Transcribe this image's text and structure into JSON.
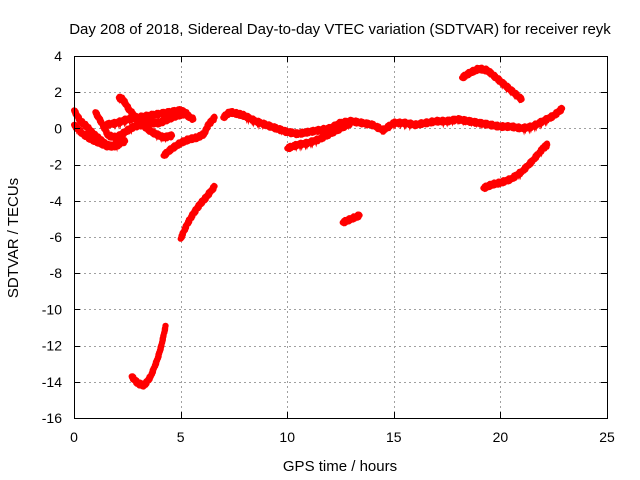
{
  "chart_data": {
    "type": "line",
    "title": "Day 208 of 2018, Sidereal Day-to-day VTEC variation (SDTVAR) for receiver reyk",
    "xlabel": "GPS time / hours",
    "ylabel": "SDTVAR / TECUs",
    "xlim": [
      0,
      25
    ],
    "ylim": [
      -16,
      4
    ],
    "xticks": [
      0,
      5,
      10,
      15,
      20,
      25
    ],
    "yticks": [
      -16,
      -14,
      -12,
      -10,
      -8,
      -6,
      -4,
      -2,
      0,
      2,
      4
    ],
    "xtick_labels": [
      "0",
      "5",
      "10",
      "15",
      "20",
      "25"
    ],
    "ytick_labels": [
      "-16",
      "-14",
      "-12",
      "-10",
      "-8",
      "-6",
      "-4",
      "-2",
      "0",
      "2",
      "4"
    ],
    "grid": true,
    "series_color": "#ff0000",
    "series": [
      {
        "name": "s1",
        "x": [
          0,
          0.3,
          0.6,
          0.9,
          1.2,
          1.5,
          1.8,
          2.1
        ],
        "y": [
          1.0,
          0.4,
          0.1,
          -0.3,
          -0.6,
          -0.9,
          -1.0,
          -0.9
        ]
      },
      {
        "name": "s2",
        "x": [
          0,
          0.4,
          0.8,
          1.2,
          1.6,
          2.0,
          2.4
        ],
        "y": [
          0.2,
          -0.3,
          -0.6,
          -0.8,
          -1.0,
          -0.9,
          -0.7
        ]
      },
      {
        "name": "s3",
        "x": [
          1.0,
          1.3,
          1.6,
          2.0,
          2.4,
          2.8,
          3.2,
          3.6,
          4.0,
          4.4,
          4.8,
          5.2,
          5.6
        ],
        "y": [
          0.9,
          0.3,
          -0.4,
          -0.5,
          -0.2,
          0.1,
          0.2,
          0.3,
          0.3,
          0.5,
          0.7,
          0.8,
          0.5
        ]
      },
      {
        "name": "s4",
        "x": [
          1.5,
          2.0,
          2.5,
          3.0,
          3.5,
          4.0,
          4.5,
          5.0,
          5.3
        ],
        "y": [
          0.2,
          0.3,
          0.5,
          0.6,
          0.7,
          0.8,
          0.9,
          1.0,
          0.8
        ]
      },
      {
        "name": "s5",
        "x": [
          2.1,
          2.3,
          2.6,
          3.0,
          3.4,
          3.8,
          4.2,
          4.6
        ],
        "y": [
          1.7,
          1.6,
          1.0,
          0.5,
          0.0,
          -0.3,
          -0.5,
          -0.4
        ]
      },
      {
        "name": "s6",
        "x": [
          4.2,
          4.6,
          5.0,
          5.4,
          5.8,
          6.1,
          6.3,
          6.6
        ],
        "y": [
          -1.5,
          -1.1,
          -0.8,
          -0.6,
          -0.5,
          -0.3,
          0.2,
          0.6
        ]
      },
      {
        "name": "s7",
        "x": [
          2.7,
          3.0,
          3.3,
          3.6,
          3.9,
          4.1,
          4.3
        ],
        "y": [
          -13.7,
          -14.1,
          -14.2,
          -13.7,
          -12.8,
          -12.0,
          -10.9
        ]
      },
      {
        "name": "s8",
        "x": [
          5.0,
          5.3,
          5.6,
          5.9,
          6.2,
          6.6
        ],
        "y": [
          -6.1,
          -5.3,
          -4.7,
          -4.2,
          -3.8,
          -3.2
        ]
      },
      {
        "name": "s9",
        "x": [
          7.0,
          7.3,
          7.7,
          8.0,
          8.5,
          9.0,
          9.5,
          10.0,
          10.5,
          11.0,
          11.5,
          12.0,
          12.5,
          13.0,
          13.5,
          14.0,
          14.5,
          15.0,
          15.5,
          16.0,
          16.5,
          17.0,
          17.5,
          18.0,
          18.5,
          19.0,
          19.5,
          20.0,
          20.5,
          21.0
        ],
        "y": [
          0.6,
          0.9,
          0.8,
          0.7,
          0.4,
          0.2,
          0.0,
          -0.2,
          -0.3,
          -0.2,
          -0.1,
          0.0,
          0.3,
          0.4,
          0.3,
          0.2,
          -0.1,
          0.3,
          0.3,
          0.2,
          0.3,
          0.4,
          0.4,
          0.5,
          0.4,
          0.3,
          0.2,
          0.1,
          0.1,
          0.0
        ]
      },
      {
        "name": "s10",
        "x": [
          10.0,
          10.5,
          11.0,
          11.5,
          12.0,
          12.5,
          13.0
        ],
        "y": [
          -1.1,
          -0.9,
          -0.8,
          -0.6,
          -0.3,
          0.0,
          0.3
        ]
      },
      {
        "name": "s11",
        "x": [
          21.0,
          21.5,
          22.0,
          22.5,
          22.9
        ],
        "y": [
          0.0,
          0.1,
          0.4,
          0.7,
          1.1
        ]
      },
      {
        "name": "s12",
        "x": [
          12.6,
          13.0,
          13.4
        ],
        "y": [
          -5.2,
          -5.0,
          -4.8
        ]
      },
      {
        "name": "s13",
        "x": [
          18.2,
          18.6,
          19.0,
          19.4,
          19.8,
          20.2,
          20.6,
          21.0
        ],
        "y": [
          2.8,
          3.1,
          3.3,
          3.2,
          2.8,
          2.4,
          2.0,
          1.6
        ]
      },
      {
        "name": "s14",
        "x": [
          19.2,
          19.6,
          20.0,
          20.5,
          21.0,
          21.5,
          22.0,
          22.2
        ],
        "y": [
          -3.3,
          -3.1,
          -3.0,
          -2.8,
          -2.4,
          -1.8,
          -1.1,
          -0.9
        ]
      }
    ]
  }
}
